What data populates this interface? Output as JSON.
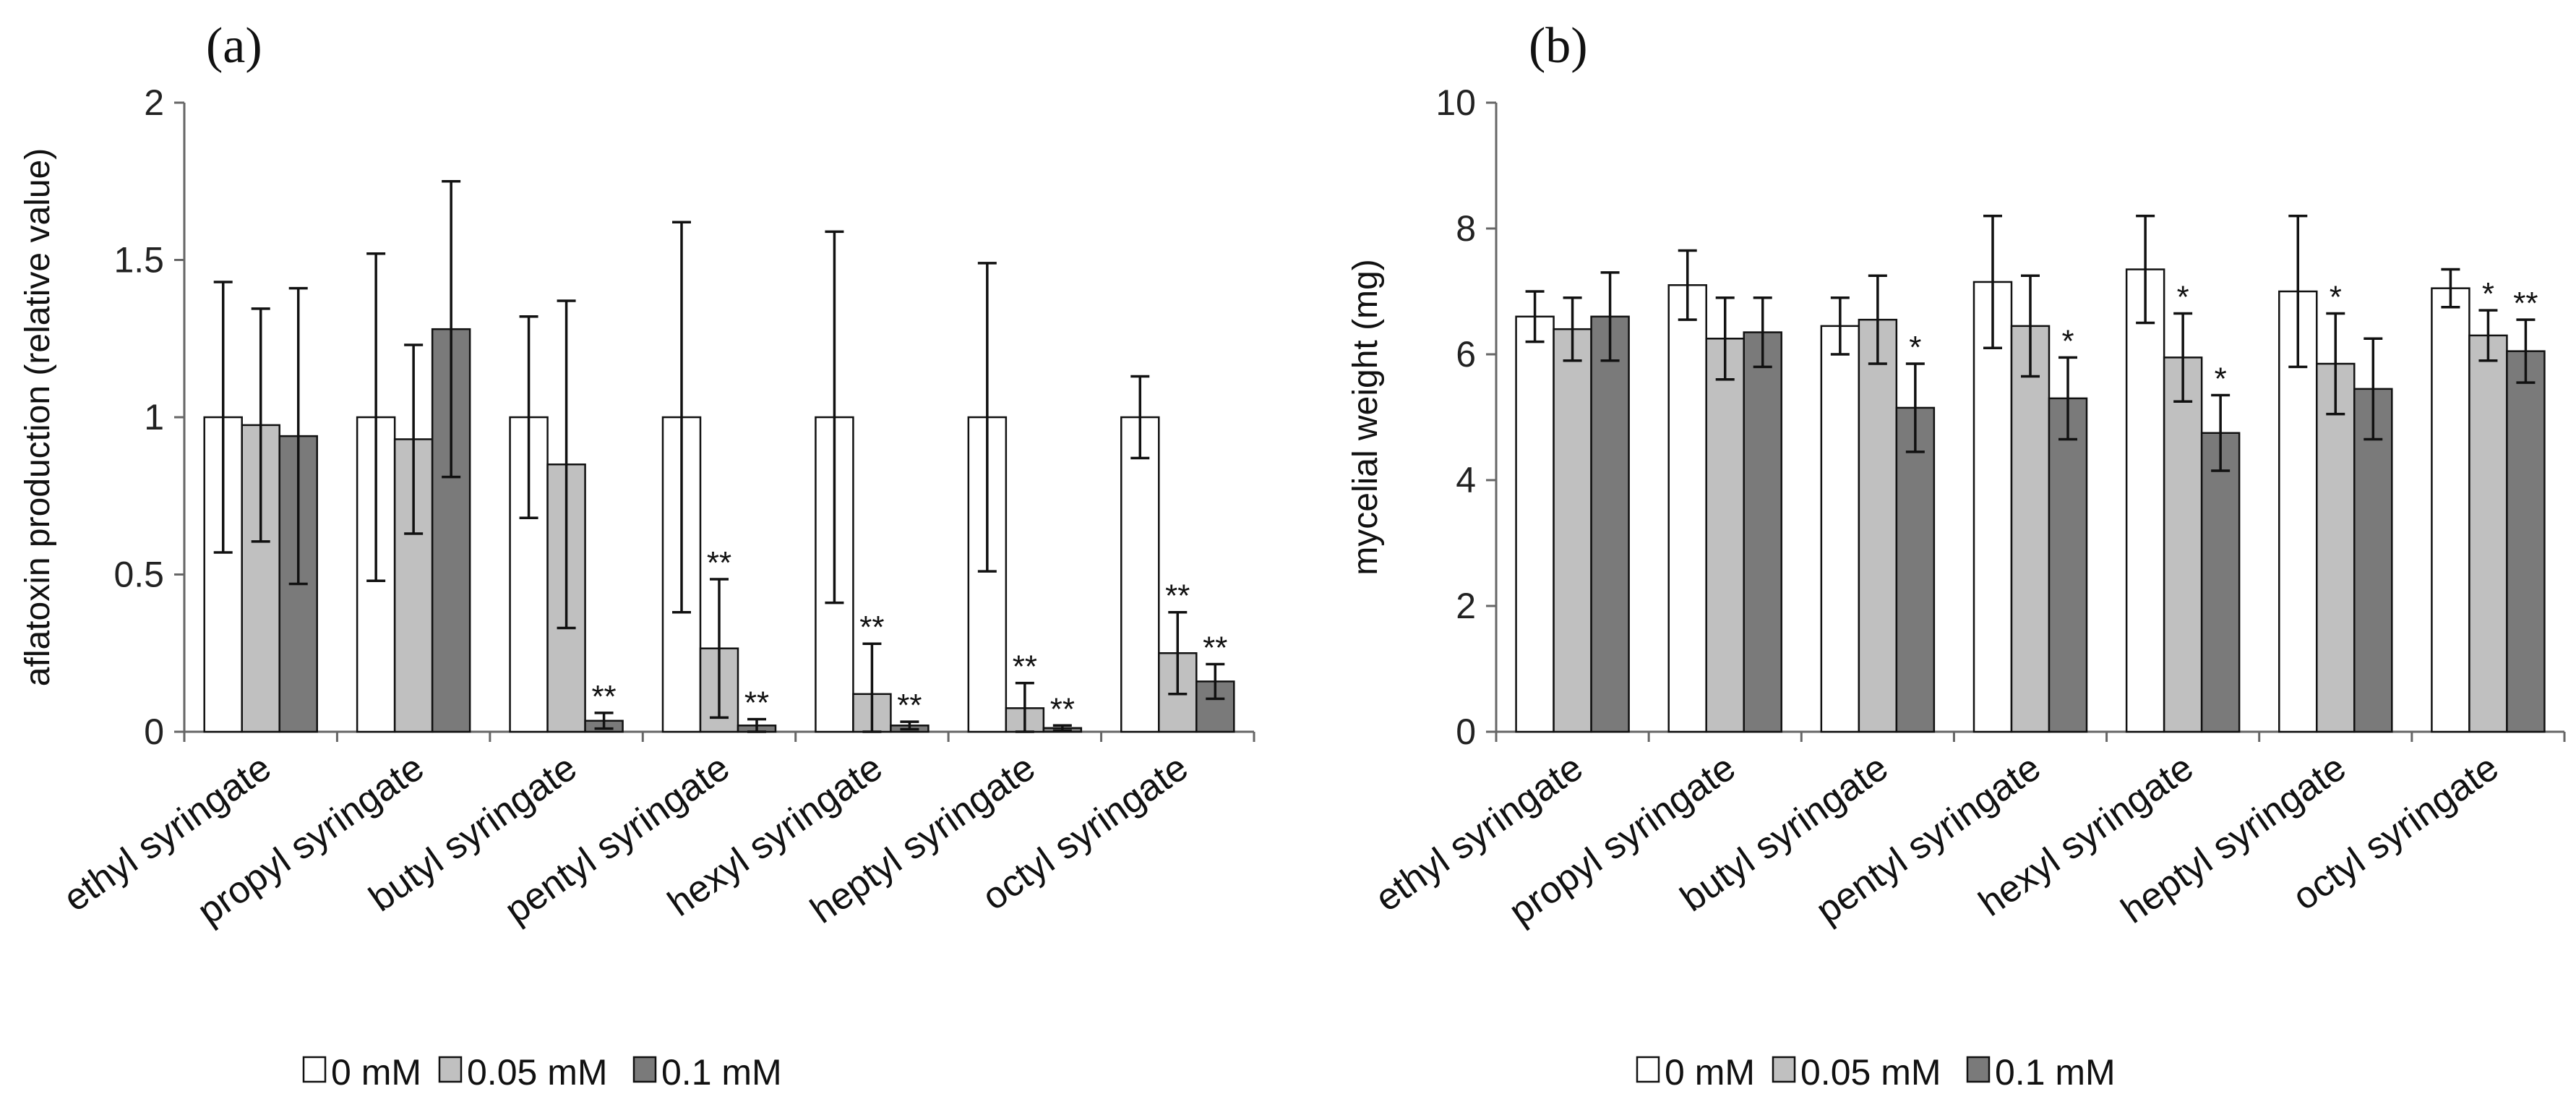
{
  "chart_data": [
    {
      "type": "bar",
      "panel": "(a)",
      "ylabel": "aflatoxin production (relative value)",
      "ylim": [
        0,
        2
      ],
      "yticks": [
        "0",
        "0.5",
        "1",
        "1.5",
        "2"
      ],
      "ytick_values": [
        0,
        0.5,
        1,
        1.5,
        2
      ],
      "categories": [
        "ethyl syringate",
        "propyl syringate",
        "butyl syringate",
        "pentyl syringate",
        "hexyl syringate",
        "heptyl syringate",
        "octyl syringate"
      ],
      "series": [
        {
          "name": "0 mM",
          "color": "#ffffff",
          "values": [
            1,
            1,
            1,
            1,
            1,
            1,
            1
          ],
          "errors": [
            0.43,
            0.52,
            0.32,
            0.62,
            0.59,
            0.49,
            0.13
          ],
          "stars": [
            "",
            "",
            "",
            "",
            "",
            "",
            ""
          ]
        },
        {
          "name": "0.05 mM",
          "color": "#c0c0c0",
          "values": [
            0.975,
            0.93,
            0.85,
            0.265,
            0.12,
            0.075,
            0.25
          ],
          "errors": [
            0.37,
            0.3,
            0.52,
            0.22,
            0.16,
            0.08,
            0.13
          ],
          "stars": [
            "",
            "",
            "",
            "**",
            "**",
            "**",
            "**"
          ]
        },
        {
          "name": "0.1 mM",
          "color": "#7a7a7a",
          "values": [
            0.94,
            1.28,
            0.035,
            0.02,
            0.02,
            0.012,
            0.16
          ],
          "errors": [
            0.47,
            0.47,
            0.025,
            0.02,
            0.012,
            0.008,
            0.055
          ],
          "stars": [
            "",
            "",
            "**",
            "**",
            "**",
            "**",
            "**"
          ]
        }
      ],
      "legend": [
        "0 mM",
        "0.05 mM",
        "0.1 mM"
      ],
      "legend_position": "bottom"
    },
    {
      "type": "bar",
      "panel": "(b)",
      "ylabel": "mycelial weight (mg)",
      "ylim": [
        0,
        10
      ],
      "yticks": [
        "0",
        "2",
        "4",
        "6",
        "8",
        "10"
      ],
      "ytick_values": [
        0,
        2,
        4,
        6,
        8,
        10
      ],
      "categories": [
        "ethyl syringate",
        "propyl syringate",
        "butyl syringate",
        "pentyl syringate",
        "hexyl syringate",
        "heptyl syringate",
        "octyl syringate"
      ],
      "series": [
        {
          "name": "0 mM",
          "color": "#ffffff",
          "values": [
            6.6,
            7.1,
            6.45,
            7.15,
            7.35,
            7.0,
            7.05
          ],
          "errors": [
            0.4,
            0.55,
            0.45,
            1.05,
            0.85,
            1.2,
            0.3
          ],
          "stars": [
            "",
            "",
            "",
            "",
            "",
            "",
            ""
          ]
        },
        {
          "name": "0.05 mM",
          "color": "#c0c0c0",
          "values": [
            6.4,
            6.25,
            6.55,
            6.45,
            5.95,
            5.85,
            6.3
          ],
          "errors": [
            0.5,
            0.65,
            0.7,
            0.8,
            0.7,
            0.8,
            0.4
          ],
          "stars": [
            "",
            "",
            "",
            "",
            "*",
            "*",
            "*"
          ]
        },
        {
          "name": "0.1 mM",
          "color": "#7a7a7a",
          "values": [
            6.6,
            6.35,
            5.15,
            5.3,
            4.75,
            5.45,
            6.05
          ],
          "errors": [
            0.7,
            0.55,
            0.7,
            0.65,
            0.6,
            0.8,
            0.5
          ],
          "stars": [
            "",
            "",
            "*",
            "*",
            "*",
            "",
            "**"
          ]
        }
      ],
      "legend": [
        "0 mM",
        "0.05 mM",
        "0.1 mM"
      ],
      "legend_position": "bottom"
    }
  ]
}
